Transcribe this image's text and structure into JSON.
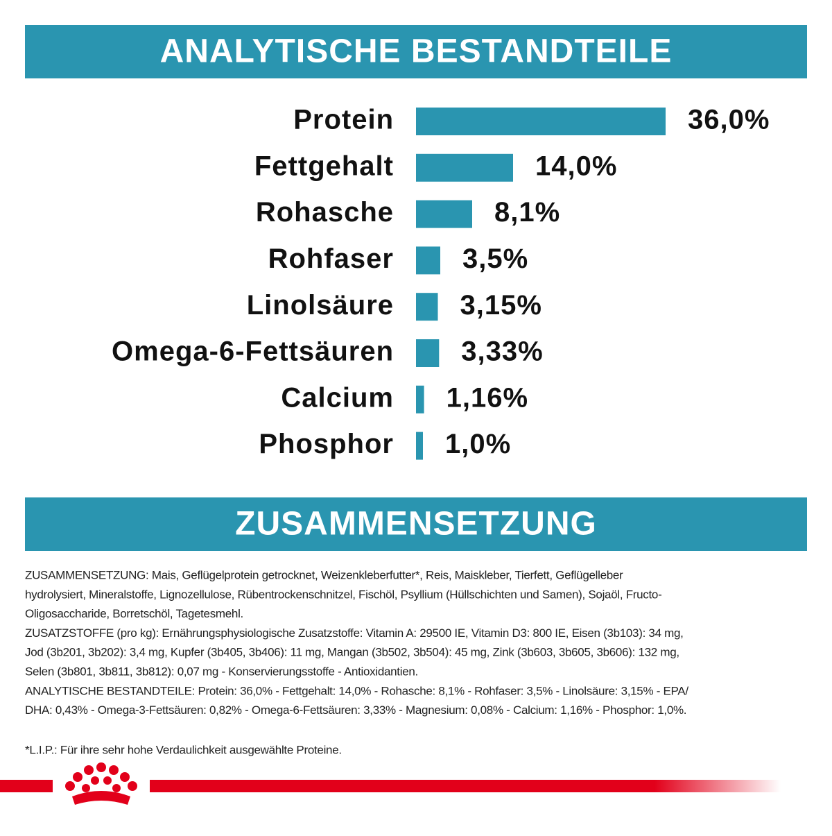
{
  "chart_data": {
    "type": "bar",
    "orientation": "horizontal",
    "title": "ANALYTISCHE BESTANDTEILE",
    "categories": [
      "Protein",
      "Fettgehalt",
      "Rohasche",
      "Rohfaser",
      "Linolsäure",
      "Omega-6-Fettsäuren",
      "Calcium",
      "Phosphor"
    ],
    "values": [
      36.0,
      14.0,
      8.1,
      3.5,
      3.15,
      3.33,
      1.16,
      1.0
    ],
    "value_labels": [
      "36,0%",
      "14,0%",
      "8,1%",
      "3,5%",
      "3,15%",
      "3,33%",
      "1,16%",
      "1,0%"
    ],
    "color": "#2a95b0"
  },
  "composition": {
    "title": "ZUSAMMENSETZUNG",
    "lines": [
      "ZUSAMMENSETZUNG: Mais, Geflügelprotein getrocknet, Weizenkleberfutter*, Reis, Maiskleber, Tierfett, Geflügelleber",
      "hydrolysiert, Mineralstoffe, Lignozellulose, Rübentrockenschnitzel, Fischöl, Psyllium (Hüllschichten und Samen), Sojaöl, Fructo-",
      "Oligosaccharide, Borretschöl, Tagetesmehl.",
      "ZUSATZSTOFFE (pro kg): Ernährungsphysiologische Zusatzstoffe: Vitamin A: 29500 IE, Vitamin D3: 800 IE, Eisen (3b103): 34 mg,",
      "Jod (3b201, 3b202): 3,4 mg, Kupfer (3b405, 3b406): 11 mg, Mangan (3b502, 3b504): 45 mg, Zink (3b603, 3b605, 3b606): 132 mg,",
      "Selen (3b801, 3b811, 3b812): 0,07 mg - Konservierungsstoffe - Antioxidantien.",
      "ANALYTISCHE BESTANDTEILE: Protein: 36,0% - Fettgehalt: 14,0% - Rohasche: 8,1% - Rohfaser: 3,5% - Linolsäure: 3,15% - EPA/",
      "DHA: 0,43% - Omega-3-Fettsäuren: 0,82% - Omega-6-Fettsäuren: 3,33% - Magnesium: 0,08% - Calcium: 1,16% - Phosphor: 1,0%."
    ],
    "footnote": "*L.I.P.: Für ihre sehr hohe Verdaulichkeit ausgewählte Proteine."
  }
}
